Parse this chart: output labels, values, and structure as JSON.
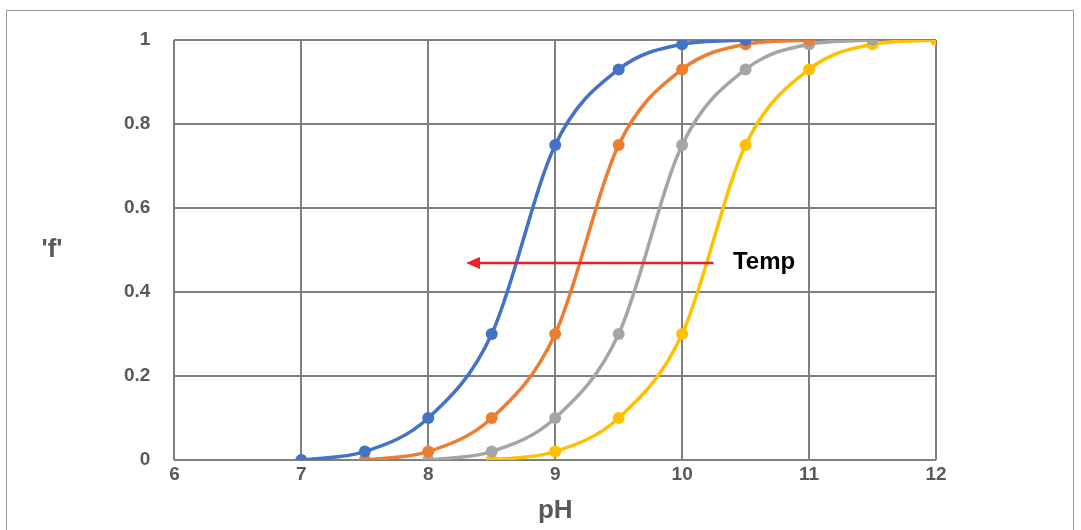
{
  "chart_data": {
    "type": "line",
    "xlabel": "pH",
    "ylabel": "'f'",
    "xlim": [
      6,
      12
    ],
    "xticks": [
      6,
      7,
      8,
      9,
      10,
      11,
      12
    ],
    "ylim": [
      0,
      1
    ],
    "yticks": [
      0,
      0.2,
      0.4,
      0.6,
      0.8,
      1
    ],
    "grid": true,
    "marker": "circle",
    "line_style": "solid",
    "annotations": [
      "Temp"
    ],
    "series": [
      {
        "color": "#4472c4",
        "x": [
          7,
          7.5,
          8,
          8.5,
          9,
          9.5,
          10,
          10.5
        ],
        "values": [
          0,
          0.02,
          0.1,
          0.3,
          0.75,
          0.93,
          0.99,
          1
        ]
      },
      {
        "color": "#ed7d31",
        "x": [
          7.5,
          8,
          8.5,
          9,
          9.5,
          10,
          10.5,
          11
        ],
        "values": [
          0,
          0.02,
          0.1,
          0.3,
          0.75,
          0.93,
          0.99,
          1
        ]
      },
      {
        "color": "#a5a5a5",
        "x": [
          8,
          8.5,
          9,
          9.5,
          10,
          10.5,
          11,
          11.5
        ],
        "values": [
          0,
          0.02,
          0.1,
          0.3,
          0.75,
          0.93,
          0.99,
          1
        ]
      },
      {
        "color": "#ffc000",
        "x": [
          8.5,
          9,
          9.5,
          10,
          10.5,
          11,
          11.5,
          12
        ],
        "values": [
          0,
          0.02,
          0.1,
          0.3,
          0.75,
          0.93,
          0.99,
          1
        ]
      }
    ]
  }
}
